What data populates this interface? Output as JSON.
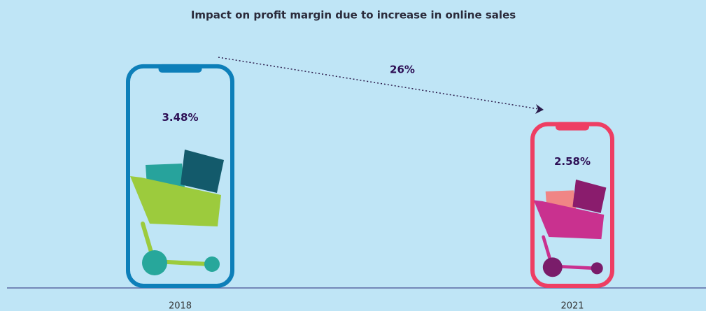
{
  "chart_data": {
    "type": "pictogram",
    "title": "Impact on profit margin due to increase in online sales",
    "categories": [
      "2018",
      "2021"
    ],
    "values": [
      3.48,
      2.58
    ],
    "value_labels": [
      "3.48%",
      "2.58%"
    ],
    "colors": [
      "#0d7fb9",
      "#ee3e63"
    ],
    "annotation": "26%"
  }
}
